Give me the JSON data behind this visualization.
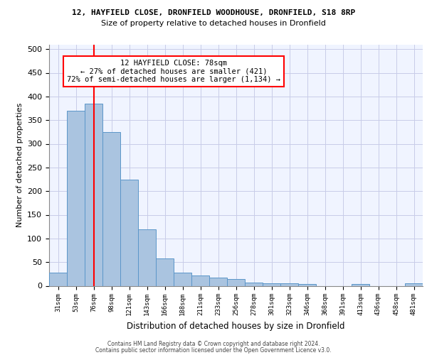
{
  "title_line1": "12, HAYFIELD CLOSE, DRONFIELD WOODHOUSE, DRONFIELD, S18 8RP",
  "title_line2": "Size of property relative to detached houses in Dronfield",
  "xlabel": "Distribution of detached houses by size in Dronfield",
  "ylabel": "Number of detached properties",
  "footer_line1": "Contains HM Land Registry data © Crown copyright and database right 2024.",
  "footer_line2": "Contains public sector information licensed under the Open Government Licence v3.0.",
  "bar_labels": [
    "31sqm",
    "53sqm",
    "76sqm",
    "98sqm",
    "121sqm",
    "143sqm",
    "166sqm",
    "188sqm",
    "211sqm",
    "233sqm",
    "256sqm",
    "278sqm",
    "301sqm",
    "323sqm",
    "346sqm",
    "368sqm",
    "391sqm",
    "413sqm",
    "436sqm",
    "458sqm",
    "481sqm"
  ],
  "bar_values": [
    28,
    370,
    385,
    325,
    225,
    120,
    58,
    28,
    22,
    18,
    14,
    7,
    5,
    5,
    4,
    0,
    0,
    4,
    0,
    0,
    5
  ],
  "bar_color": "#aac4e0",
  "bar_edge_color": "#5b96c9",
  "reference_line_x": 2,
  "reference_line_color": "red",
  "annotation_text": "12 HAYFIELD CLOSE: 78sqm\n← 27% of detached houses are smaller (421)\n72% of semi-detached houses are larger (1,134) →",
  "annotation_box_color": "white",
  "annotation_box_edge_color": "red",
  "ylim": [
    0,
    510
  ],
  "yticks": [
    0,
    50,
    100,
    150,
    200,
    250,
    300,
    350,
    400,
    450,
    500
  ],
  "bg_color": "#f0f4ff",
  "grid_color": "#c8cce8",
  "title1_fontsize": 8.0,
  "title2_fontsize": 8.0,
  "footer_fontsize": 5.5
}
